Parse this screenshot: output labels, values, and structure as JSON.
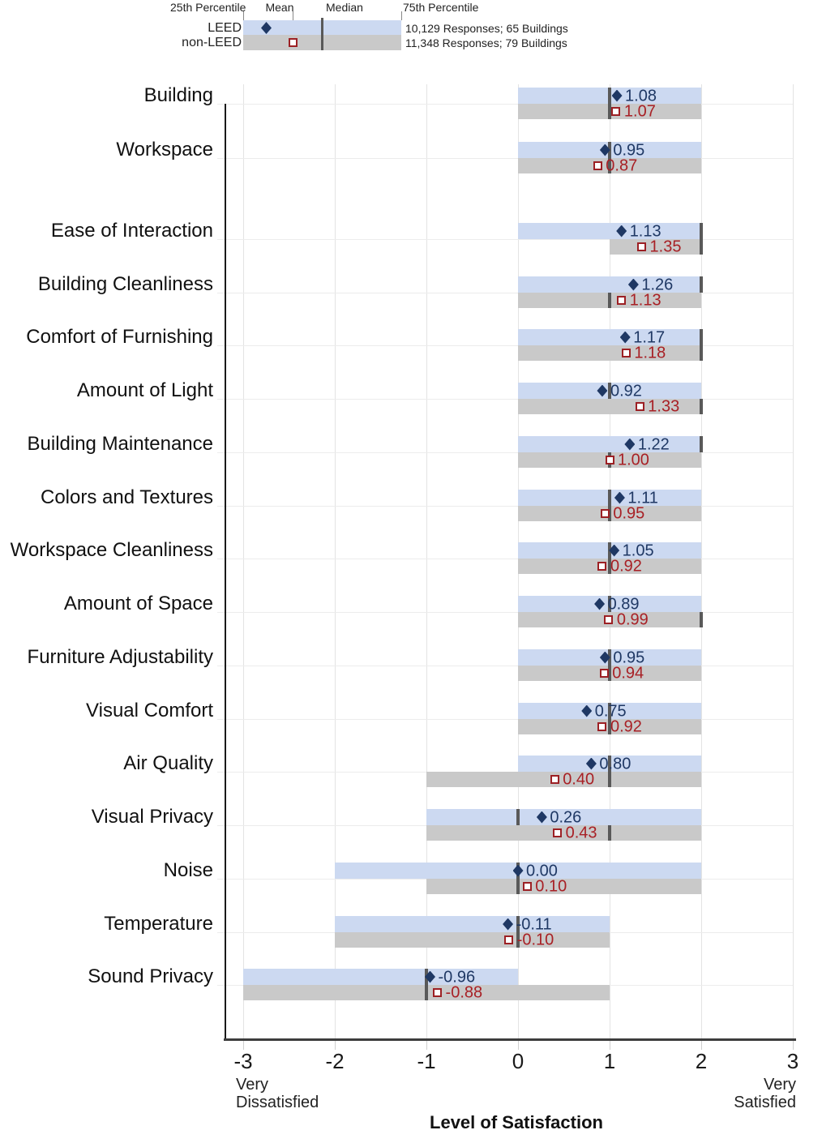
{
  "legend": {
    "p25_label": "25th Percentile",
    "mean_label": "Mean",
    "median_label": "Median",
    "p75_label": "75th Percentile",
    "series1_label": "LEED",
    "series2_label": "non-LEED",
    "series1_note": "10,129 Responses; 65 Buildings",
    "series2_note": "11,348 Responses; 79 Buildings"
  },
  "axis": {
    "min_caption_line1": "Very",
    "min_caption_line2": "Dissatisfied",
    "max_caption_line1": "Very",
    "max_caption_line2": "Satisfied",
    "xlabel": "Level of Satisfaction"
  },
  "colors": {
    "leed_bar": "#ccd9f1",
    "nonleed_bar": "#c9c9c9",
    "leed_marker": "#1f3864",
    "nonleed_marker": "#9c2024",
    "leed_text": "#1f3864",
    "nonleed_text": "#a82025",
    "median_line": "#595959"
  },
  "chart_data": {
    "type": "bar",
    "title": "",
    "xlabel": "Level of Satisfaction",
    "xlim": [
      -3,
      3
    ],
    "x_ticks": [
      -3,
      -2,
      -1,
      0,
      1,
      2,
      3
    ],
    "x_tick_captions": {
      "min": "Very Dissatisfied",
      "max": "Very Satisfied"
    },
    "legend_position": "top",
    "grid": true,
    "series_meta": [
      {
        "name": "LEED",
        "note": "10,129 Responses; 65 Buildings"
      },
      {
        "name": "non-LEED",
        "note": "11,348 Responses; 79 Buildings"
      }
    ],
    "group_break_after": "Workspace",
    "rows": [
      {
        "label": "Building",
        "leed": {
          "mean": 1.08,
          "median": 1,
          "p25": 0,
          "p75": 2
        },
        "nonleed": {
          "mean": 1.07,
          "median": 1,
          "p25": 0,
          "p75": 2
        }
      },
      {
        "label": "Workspace",
        "leed": {
          "mean": 0.95,
          "median": 1,
          "p25": 0,
          "p75": 2
        },
        "nonleed": {
          "mean": 0.87,
          "median": 1,
          "p25": 0,
          "p75": 2
        }
      },
      {
        "label": "Ease of Interaction",
        "leed": {
          "mean": 1.13,
          "median": 2,
          "p25": 0,
          "p75": 2
        },
        "nonleed": {
          "mean": 1.35,
          "median": 2,
          "p25": 1,
          "p75": 2
        }
      },
      {
        "label": "Building Cleanliness",
        "leed": {
          "mean": 1.26,
          "median": 2,
          "p25": 0,
          "p75": 2
        },
        "nonleed": {
          "mean": 1.13,
          "median": 1,
          "p25": 0,
          "p75": 2
        }
      },
      {
        "label": "Comfort of Furnishing",
        "leed": {
          "mean": 1.17,
          "median": 2,
          "p25": 0,
          "p75": 2
        },
        "nonleed": {
          "mean": 1.18,
          "median": 2,
          "p25": 0,
          "p75": 2
        }
      },
      {
        "label": "Amount of Light",
        "leed": {
          "mean": 0.92,
          "median": 1,
          "p25": 0,
          "p75": 2
        },
        "nonleed": {
          "mean": 1.33,
          "median": 2,
          "p25": 0,
          "p75": 2
        }
      },
      {
        "label": "Building Maintenance",
        "leed": {
          "mean": 1.22,
          "median": 2,
          "p25": 0,
          "p75": 2
        },
        "nonleed": {
          "mean": 1.0,
          "median": 1,
          "p25": 0,
          "p75": 2
        }
      },
      {
        "label": "Colors and Textures",
        "leed": {
          "mean": 1.11,
          "median": 1,
          "p25": 0,
          "p75": 2
        },
        "nonleed": {
          "mean": 0.95,
          "median": 1,
          "p25": 0,
          "p75": 2
        }
      },
      {
        "label": "Workspace Cleanliness",
        "leed": {
          "mean": 1.05,
          "median": 1,
          "p25": 0,
          "p75": 2
        },
        "nonleed": {
          "mean": 0.92,
          "median": 1,
          "p25": 0,
          "p75": 2
        }
      },
      {
        "label": "Amount of Space",
        "leed": {
          "mean": 0.89,
          "median": 1,
          "p25": 0,
          "p75": 2
        },
        "nonleed": {
          "mean": 0.99,
          "median": 2,
          "p25": 0,
          "p75": 2
        }
      },
      {
        "label": "Furniture Adjustability",
        "leed": {
          "mean": 0.95,
          "median": 1,
          "p25": 0,
          "p75": 2
        },
        "nonleed": {
          "mean": 0.94,
          "median": 1,
          "p25": 0,
          "p75": 2
        }
      },
      {
        "label": "Visual Comfort",
        "leed": {
          "mean": 0.75,
          "median": 1,
          "p25": 0,
          "p75": 2
        },
        "nonleed": {
          "mean": 0.92,
          "median": 1,
          "p25": 0,
          "p75": 2
        }
      },
      {
        "label": "Air Quality",
        "leed": {
          "mean": 0.8,
          "median": 1,
          "p25": 0,
          "p75": 2
        },
        "nonleed": {
          "mean": 0.4,
          "median": 1,
          "p25": -1,
          "p75": 2
        }
      },
      {
        "label": "Visual Privacy",
        "leed": {
          "mean": 0.26,
          "median": 0,
          "p25": -1,
          "p75": 2
        },
        "nonleed": {
          "mean": 0.43,
          "median": 1,
          "p25": -1,
          "p75": 2
        }
      },
      {
        "label": "Noise",
        "leed": {
          "mean": 0.0,
          "median": 0,
          "p25": -2,
          "p75": 2
        },
        "nonleed": {
          "mean": 0.1,
          "median": 0,
          "p25": -1,
          "p75": 2
        }
      },
      {
        "label": "Temperature",
        "leed": {
          "mean": -0.11,
          "median": 0,
          "p25": -2,
          "p75": 1
        },
        "nonleed": {
          "mean": -0.1,
          "median": 0,
          "p25": -2,
          "p75": 1
        }
      },
      {
        "label": "Sound Privacy",
        "leed": {
          "mean": -0.96,
          "median": -1,
          "p25": -3,
          "p75": 0
        },
        "nonleed": {
          "mean": -0.88,
          "median": -1,
          "p25": -3,
          "p75": 1
        }
      }
    ]
  }
}
